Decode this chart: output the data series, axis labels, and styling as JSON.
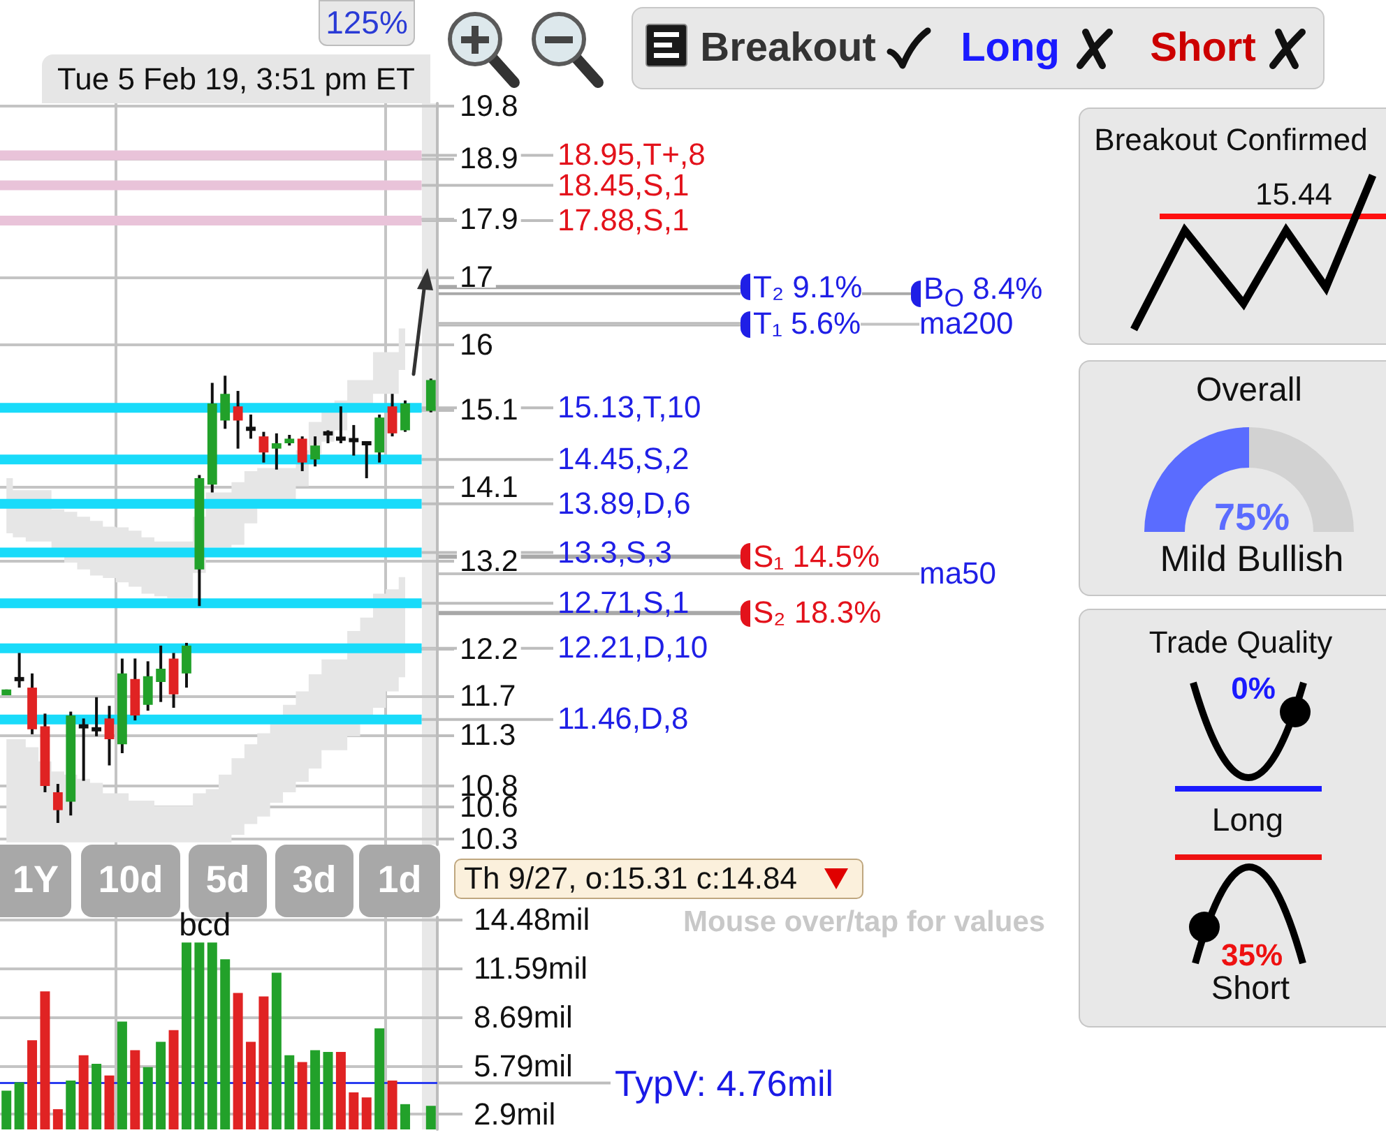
{
  "chart_data": [
    {
      "type": "candlestick",
      "categories": [
        null,
        null,
        null,
        null,
        null,
        null,
        null,
        null,
        null,
        null,
        null,
        null,
        null,
        null,
        null,
        null,
        null,
        null,
        null,
        null,
        null,
        null,
        null,
        null,
        null,
        null,
        null,
        null,
        null,
        null,
        null,
        null,
        null,
        null
      ],
      "ohlc": [
        [
          11.71,
          11.77,
          11.71,
          11.77
        ],
        [
          11.88,
          12.16,
          11.79,
          11.88
        ],
        [
          11.79,
          11.94,
          11.31,
          11.36
        ],
        [
          11.39,
          11.52,
          10.74,
          10.8
        ],
        [
          10.74,
          10.82,
          10.45,
          10.57
        ],
        [
          10.65,
          11.54,
          10.52,
          11.5
        ],
        [
          11.39,
          11.47,
          10.85,
          11.39
        ],
        [
          11.36,
          11.69,
          11.29,
          11.36
        ],
        [
          11.47,
          11.6,
          11.0,
          11.26
        ],
        [
          11.21,
          12.1,
          11.12,
          11.94
        ],
        [
          11.88,
          12.1,
          11.45,
          11.5
        ],
        [
          11.61,
          12.07,
          11.55,
          11.91
        ],
        [
          11.85,
          12.24,
          11.64,
          11.99
        ],
        [
          12.1,
          12.16,
          11.58,
          11.72
        ],
        [
          11.94,
          12.27,
          11.79,
          12.24
        ],
        [
          13.1,
          14.25,
          12.68,
          14.21
        ],
        [
          14.13,
          15.47,
          14.03,
          15.19
        ],
        [
          14.96,
          15.57,
          14.85,
          15.32
        ],
        [
          15.15,
          15.36,
          14.59,
          14.96
        ],
        [
          14.85,
          15.04,
          14.72,
          14.85
        ],
        [
          14.75,
          14.81,
          14.41,
          14.54
        ],
        [
          14.59,
          14.79,
          14.32,
          14.66
        ],
        [
          14.66,
          14.77,
          14.63,
          14.72
        ],
        [
          14.72,
          14.75,
          14.3,
          14.41
        ],
        [
          14.45,
          14.75,
          14.36,
          14.63
        ],
        [
          14.79,
          14.83,
          14.66,
          14.79
        ],
        [
          14.72,
          15.15,
          14.66,
          14.72
        ],
        [
          14.7,
          14.9,
          14.5,
          14.7
        ],
        [
          14.66,
          14.68,
          14.21,
          14.66
        ],
        [
          14.54,
          15.04,
          14.41,
          15.0
        ],
        [
          15.15,
          15.32,
          14.75,
          14.79
        ],
        [
          14.83,
          15.23,
          14.81,
          15.19
        ],
        null,
        [
          15.09,
          15.53,
          15.07,
          15.51
        ]
      ],
      "colors": [
        "#22a12a",
        "#111111",
        "#e02323",
        "#e02323",
        "#e02323",
        "#22a12a",
        "#111111",
        "#111111",
        "#e02323",
        "#22a12a",
        "#e02323",
        "#22a12a",
        "#22a12a",
        "#e02323",
        "#22a12a",
        "#22a12a",
        "#22a12a",
        "#22a12a",
        "#e02323",
        "#111111",
        "#e02323",
        "#22a12a",
        "#22a12a",
        "#e02323",
        "#22a12a",
        "#111111",
        "#111111",
        "#111111",
        "#111111",
        "#22a12a",
        "#e02323",
        "#22a12a",
        null,
        "#22a12a"
      ],
      "series": [
        {
          "type": "line",
          "color": "#e6e6e6",
          "values": [
            null,
            null,
            null,
            null,
            null,
            null,
            null,
            null,
            null,
            null,
            null,
            null,
            null,
            null,
            null,
            null,
            null,
            null,
            null,
            null,
            null,
            null,
            null,
            null,
            null,
            null,
            null,
            null,
            null,
            null,
            null,
            null,
            null,
            null
          ],
          "upper": [
            14.21,
            14.06,
            14.06,
            14.06,
            13.82,
            13.79,
            13.73,
            13.68,
            13.61,
            13.6,
            13.56,
            13.48,
            13.43,
            13.43,
            13.43,
            13.73,
            14.03,
            14.03,
            14.16,
            14.3,
            14.34,
            14.34,
            14.34,
            14.57,
            14.94,
            15.08,
            15.23,
            15.51,
            15.51,
            15.9,
            15.9,
            16.24,
            null,
            null
          ],
          "lower": [
            13.53,
            13.48,
            13.43,
            13.43,
            13.26,
            13.18,
            13.1,
            13.03,
            13.0,
            12.95,
            12.9,
            12.82,
            12.79,
            12.77,
            12.77,
            13.06,
            13.36,
            13.36,
            13.39,
            13.65,
            13.94,
            13.94,
            13.94,
            14.11,
            14.52,
            14.68,
            14.83,
            15.13,
            15.13,
            15.32,
            15.32,
            15.65,
            null,
            null
          ]
        },
        {
          "type": "line",
          "color": "#e6e6e6",
          "values": [
            null,
            null,
            null,
            null,
            null,
            null,
            null,
            null,
            null,
            null,
            null,
            null,
            null,
            null,
            null,
            null,
            null,
            null,
            null,
            null,
            null,
            null,
            null,
            null,
            null,
            null,
            null,
            null,
            null,
            null,
            null,
            null,
            null,
            null
          ],
          "upper": [
            11.26,
            11.26,
            11.18,
            11.04,
            10.94,
            10.91,
            10.87,
            10.83,
            10.73,
            10.73,
            10.66,
            10.66,
            10.61,
            10.61,
            10.61,
            10.73,
            10.77,
            10.91,
            11.07,
            11.21,
            11.32,
            11.46,
            11.61,
            11.75,
            11.93,
            12.09,
            12.09,
            12.4,
            12.55,
            12.82,
            12.87,
            13.01,
            null,
            null
          ],
          "lower": [
            10.27,
            10.27,
            10.27,
            10.27,
            10.27,
            10.27,
            10.27,
            10.27,
            10.27,
            10.27,
            10.27,
            10.27,
            10.27,
            10.27,
            10.27,
            10.27,
            10.27,
            10.27,
            10.34,
            10.44,
            10.51,
            10.64,
            10.74,
            10.84,
            10.97,
            11.15,
            11.15,
            11.29,
            11.43,
            11.58,
            11.75,
            11.9,
            null,
            null
          ]
        }
      ],
      "log": true,
      "ylim": [
        10.25,
        19.85
      ],
      "yticks": [
        19.8,
        18.9,
        17.9,
        17,
        16,
        15.1,
        14.1,
        13.2,
        12.2,
        11.7,
        11.3,
        10.8,
        10.6,
        10.3
      ],
      "grid": "y",
      "tick_labels": "y",
      "ref_lines": [
        {
          "axis": "y",
          "value": 18.95,
          "label": "18.95,T+,8",
          "color": "#e9c3d9"
        },
        {
          "axis": "y",
          "value": 18.45,
          "label": "18.45,S,1",
          "color": "#e9c3d9"
        },
        {
          "axis": "y",
          "value": 17.88,
          "label": "17.88,S,1",
          "color": "#e9c3d9"
        },
        {
          "axis": "y",
          "value": 15.13,
          "label": "15.13,T,10",
          "color": "#19dbfa"
        },
        {
          "axis": "y",
          "value": 14.45,
          "label": "14.45,S,2",
          "color": "#19dbfa"
        },
        {
          "axis": "y",
          "value": 13.89,
          "label": "13.89,D,6",
          "color": "#19dbfa"
        },
        {
          "axis": "y",
          "value": 13.3,
          "label": "13.3,S,3",
          "color": "#19dbfa"
        },
        {
          "axis": "y",
          "value": 12.71,
          "label": "12.71,S,1",
          "color": "#19dbfa"
        },
        {
          "axis": "y",
          "value": 12.21,
          "label": "12.21,D,10",
          "color": "#19dbfa"
        },
        {
          "axis": "y",
          "value": 11.46,
          "label": "11.46,D,8",
          "color": "#19dbfa"
        },
        {
          "axis": "y",
          "value": 16.85,
          "label": "T₂ 9.1%",
          "color": "#a8a8a8"
        },
        {
          "axis": "y",
          "value": 16.75,
          "label": "B$_{O}$ 8.4%",
          "color": "#a8a8a8"
        },
        {
          "axis": "y",
          "value": 16.3,
          "label": "T₁ 5.6%",
          "color": "#a8a8a8"
        },
        {
          "axis": "y",
          "value": 16.3,
          "label": "ma200",
          "color": "#c2c2c2"
        },
        {
          "axis": "y",
          "value": 13.25,
          "label": "S₁ 14.5%",
          "color": "#a8a8a8"
        },
        {
          "axis": "y",
          "value": 13.05,
          "label": "ma50",
          "color": "#c2c2c2"
        },
        {
          "axis": "y",
          "value": 12.6,
          "label": "S₂ 18.3%",
          "color": "#a8a8a8"
        }
      ],
      "annotations": [
        "Tue 5 Feb 19, 3:51 pm ET",
        "125%",
        "Breakout",
        "Long",
        "Short",
        "1Y",
        "10d",
        "5d",
        "3d",
        "1d",
        "Th 9/27, o:15.31 c:14.84",
        "Mouse over/tap for values"
      ]
    },
    {
      "type": "bar",
      "categories": [
        null,
        null,
        null,
        null,
        null,
        null,
        null,
        null,
        null,
        null,
        null,
        null,
        null,
        null,
        null,
        null,
        null,
        null,
        null,
        null,
        null,
        null,
        null,
        null,
        null,
        null,
        null,
        null,
        null,
        null,
        null,
        null,
        null,
        null
      ],
      "values": [
        4.3,
        4.8,
        7.3,
        10.2,
        3.2,
        4.9,
        6.4,
        5.9,
        5.2,
        8.4,
        6.7,
        5.7,
        7.2,
        7.9,
        13.1,
        13.1,
        13.1,
        12.1,
        10.1,
        7.2,
        9.9,
        11.3,
        6.4,
        6.0,
        6.7,
        6.6,
        6.6,
        4.2,
        3.9,
        8.0,
        4.9,
        3.5,
        null,
        3.4
      ],
      "colors": [
        "#22a12a",
        "#22a12a",
        "#e02323",
        "#e02323",
        "#e02323",
        "#22a12a",
        "#e02323",
        "#22a12a",
        "#e02323",
        "#22a12a",
        "#e02323",
        "#22a12a",
        "#22a12a",
        "#e02323",
        "#22a12a",
        "#22a12a",
        "#22a12a",
        "#22a12a",
        "#e02323",
        "#e02323",
        "#e02323",
        "#22a12a",
        "#22a12a",
        "#e02323",
        "#22a12a",
        "#22a12a",
        "#e02323",
        "#e02323",
        "#e02323",
        "#22a12a",
        "#e02323",
        "#22a12a",
        null,
        "#22a12a"
      ],
      "ylim": [
        2,
        14.6
      ],
      "yticks": [
        {
          "value": 14.48,
          "label": "14.48mil"
        },
        {
          "value": 11.59,
          "label": "11.59mil"
        },
        {
          "value": 8.69,
          "label": "8.69mil"
        },
        {
          "value": 5.79,
          "label": "5.79mil"
        },
        {
          "value": 2.9,
          "label": "2.9mil"
        }
      ],
      "grid": "y",
      "tick_labels": "y",
      "ref_lines": [
        {
          "axis": "y",
          "value": 4.76,
          "label": "TypV: 4.76mil",
          "color": "#2a3cf0"
        }
      ],
      "annotations": [
        "bcd"
      ]
    },
    {
      "type": "other",
      "annotations": [
        "Breakout Confirmed",
        "15.44",
        "Overall",
        "75%",
        "Mild Bullish",
        "Trade Quality",
        "0%",
        "Long",
        "35%",
        "Short"
      ]
    }
  ]
}
